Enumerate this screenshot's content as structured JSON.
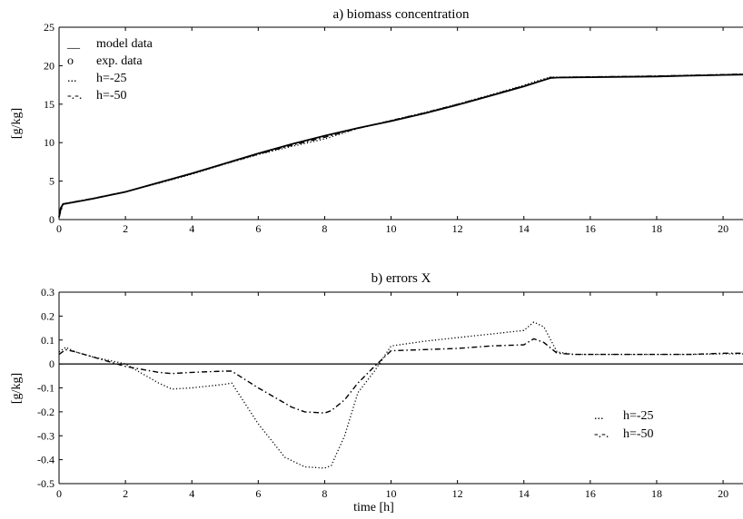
{
  "chart_data": [
    {
      "type": "line",
      "title": "a) biomass concentration",
      "xlabel": "",
      "ylabel": "[g/kg]",
      "xlim": [
        0,
        20.6
      ],
      "ylim": [
        0,
        25
      ],
      "xticks": [
        0,
        2,
        4,
        6,
        8,
        10,
        12,
        14,
        16,
        18,
        20
      ],
      "yticks": [
        0,
        5,
        10,
        15,
        20,
        25
      ],
      "legend_position": "top-left",
      "legend": [
        {
          "marker": "__",
          "label": "model data"
        },
        {
          "marker": "o",
          "label": "exp. data"
        },
        {
          "marker": "...",
          "label": "h=-25"
        },
        {
          "marker": "-.-.",
          "label": "h=-50"
        }
      ],
      "series": [
        {
          "name": "model data",
          "style": "solid",
          "x": [
            0,
            0.05,
            0.12,
            0.5,
            1,
            2,
            3,
            4,
            5,
            6,
            7,
            8,
            9,
            10,
            11,
            12,
            13,
            14,
            14.5,
            14.8,
            15,
            16,
            17,
            18,
            19,
            20,
            20.6
          ],
          "y": [
            0.3,
            1.5,
            2.0,
            2.3,
            2.7,
            3.6,
            4.8,
            6.0,
            7.3,
            8.6,
            9.8,
            10.9,
            11.9,
            12.8,
            13.8,
            14.9,
            16.1,
            17.3,
            18.0,
            18.4,
            18.45,
            18.5,
            18.55,
            18.6,
            18.7,
            18.8,
            18.85
          ]
        },
        {
          "name": "h=-25",
          "style": "dotted",
          "x": [
            0,
            0.12,
            1,
            2,
            3,
            4,
            5,
            6,
            7,
            8,
            9,
            10,
            11,
            12,
            13,
            14,
            14.3,
            14.8,
            15,
            16,
            17,
            18,
            19,
            20,
            20.6
          ],
          "y": [
            0.4,
            2.05,
            2.72,
            3.62,
            4.72,
            5.9,
            7.22,
            8.45,
            9.5,
            10.47,
            11.85,
            12.88,
            13.9,
            15.0,
            16.22,
            17.45,
            17.9,
            18.53,
            18.5,
            18.55,
            18.6,
            18.65,
            18.75,
            18.85,
            18.9
          ]
        },
        {
          "name": "h=-50",
          "style": "dashdot",
          "x": [
            0,
            0.12,
            1,
            2,
            3,
            4,
            5,
            6,
            7,
            8,
            9,
            10,
            11,
            12,
            13,
            14,
            14.3,
            14.8,
            15,
            16,
            17,
            18,
            19,
            20,
            20.6
          ],
          "y": [
            0.35,
            2.04,
            2.73,
            3.61,
            4.76,
            5.96,
            7.27,
            8.5,
            9.65,
            10.7,
            11.85,
            12.86,
            13.86,
            14.96,
            16.16,
            17.38,
            17.75,
            18.47,
            18.49,
            18.55,
            18.6,
            18.65,
            18.75,
            18.85,
            18.9
          ]
        }
      ]
    },
    {
      "type": "line",
      "title": "b) errors X",
      "xlabel": "time [h]",
      "ylabel": "[g/kg]",
      "xlim": [
        0,
        20.6
      ],
      "ylim": [
        -0.5,
        0.3
      ],
      "xticks": [
        0,
        2,
        4,
        6,
        8,
        10,
        12,
        14,
        16,
        18,
        20
      ],
      "yticks": [
        -0.5,
        -0.4,
        -0.3,
        -0.2,
        -0.1,
        0,
        0.1,
        0.2,
        0.3
      ],
      "legend_position": "bottom-right",
      "legend": [
        {
          "marker": "...",
          "label": "h=-25"
        },
        {
          "marker": "-.-.",
          "label": "h=-50"
        }
      ],
      "zero_line": true,
      "series": [
        {
          "name": "h=-25",
          "style": "dotted",
          "x": [
            0,
            0.2,
            0.5,
            1,
            2,
            3,
            3.4,
            4,
            5,
            5.2,
            6,
            6.8,
            7.4,
            8,
            8.2,
            8.6,
            9,
            9.5,
            10,
            11,
            12,
            13,
            14,
            14.3,
            14.6,
            15,
            15.5,
            16,
            17,
            18,
            19,
            20,
            20.6
          ],
          "y": [
            0.05,
            0.07,
            0.05,
            0.03,
            0.0,
            -0.08,
            -0.105,
            -0.1,
            -0.085,
            -0.08,
            -0.25,
            -0.39,
            -0.43,
            -0.435,
            -0.425,
            -0.3,
            -0.12,
            -0.03,
            0.075,
            0.095,
            0.11,
            0.125,
            0.14,
            0.175,
            0.155,
            0.05,
            0.04,
            0.04,
            0.04,
            0.04,
            0.04,
            0.042,
            0.042
          ]
        },
        {
          "name": "h=-50",
          "style": "dashdot",
          "x": [
            0,
            0.2,
            0.5,
            1,
            2,
            3,
            3.4,
            4,
            5,
            5.2,
            6,
            7,
            7.4,
            8,
            8.2,
            8.6,
            9,
            9.5,
            10,
            11,
            12,
            13,
            14,
            14.3,
            14.6,
            15,
            15.5,
            16,
            17,
            18,
            19,
            20,
            20.6
          ],
          "y": [
            0.04,
            0.06,
            0.05,
            0.03,
            -0.01,
            -0.035,
            -0.04,
            -0.035,
            -0.03,
            -0.03,
            -0.1,
            -0.18,
            -0.2,
            -0.205,
            -0.195,
            -0.15,
            -0.08,
            -0.01,
            0.055,
            0.06,
            0.065,
            0.075,
            0.08,
            0.105,
            0.09,
            0.045,
            0.04,
            0.04,
            0.04,
            0.04,
            0.04,
            0.045,
            0.045
          ]
        }
      ]
    }
  ]
}
